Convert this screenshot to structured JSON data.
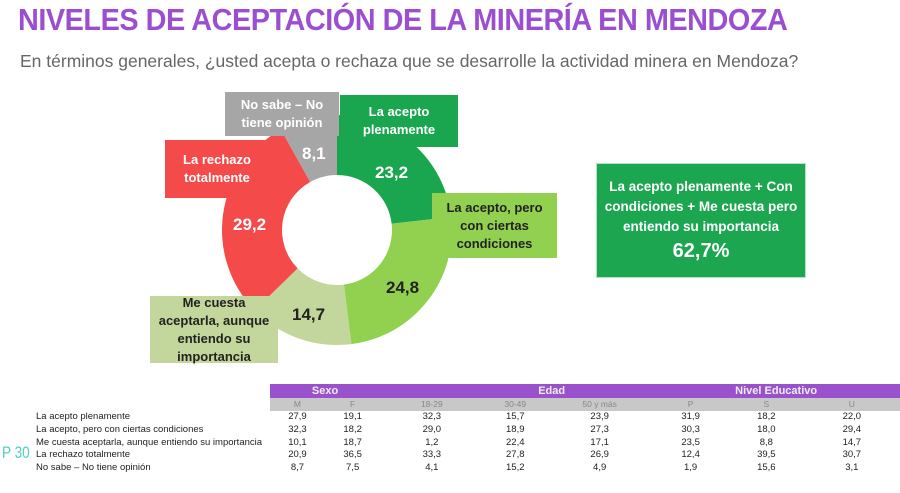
{
  "title": "NIVELES DE ACEPTACIÓN DE LA MINERÍA EN MENDOZA",
  "subtitle": "En términos generales, ¿usted acepta o rechaza que se desarrolle la actividad minera en Mendoza?",
  "chart_data": {
    "type": "pie",
    "donut": true,
    "slices": [
      {
        "label": "La acepto plenamente",
        "value": 23.2,
        "display": "23,2",
        "color": "#1aa64f"
      },
      {
        "label": "La acepto, pero con ciertas condiciones",
        "value": 24.8,
        "display": "24,8",
        "color": "#92d050"
      },
      {
        "label": "Me cuesta aceptarla, aunque entiendo su importancia",
        "value": 14.7,
        "display": "14,7",
        "color": "#c3d69b"
      },
      {
        "label": "La rechazo totalmente",
        "value": 29.2,
        "display": "29,2",
        "color": "#f44a4a"
      },
      {
        "label": "No sabe – No tiene opinión",
        "value": 8.1,
        "display": "8,1",
        "color": "#a6a6a6"
      }
    ]
  },
  "summary": {
    "text": "La acepto plenamente + Con condiciones + Me cuesta pero entiendo su importancia",
    "value": "62,7%"
  },
  "question_code": "P 30",
  "table": {
    "groups": [
      {
        "label": "Sexo",
        "span": 2
      },
      {
        "label": "Edad",
        "span": 3
      },
      {
        "label": "Nivel Educativo",
        "span": 3
      }
    ],
    "columns": [
      "M",
      "F",
      "18-29",
      "30-49",
      "50 y más",
      "P",
      "S",
      "U"
    ],
    "rows": [
      {
        "label": "La acepto plenamente",
        "values": [
          "27,9",
          "19,1",
          "32,3",
          "15,7",
          "23,9",
          "31,9",
          "18,2",
          "22,0"
        ]
      },
      {
        "label": "La acepto, pero con ciertas condiciones",
        "values": [
          "32,3",
          "18,2",
          "29,0",
          "18,9",
          "27,3",
          "30,3",
          "18,0",
          "29,4"
        ]
      },
      {
        "label": "Me cuesta aceptarla, aunque entiendo su importancia",
        "values": [
          "10,1",
          "18,7",
          "1,2",
          "22,4",
          "17,1",
          "23,5",
          "8,8",
          "14,7"
        ]
      },
      {
        "label": "La rechazo totalmente",
        "values": [
          "20,9",
          "36,5",
          "33,3",
          "27,8",
          "26,9",
          "12,4",
          "39,5",
          "30,7"
        ]
      },
      {
        "label": "No sabe – No tiene opinión",
        "values": [
          "8,7",
          "7,5",
          "4,1",
          "15,2",
          "4,9",
          "1,9",
          "15,6",
          "3,1"
        ]
      }
    ]
  }
}
